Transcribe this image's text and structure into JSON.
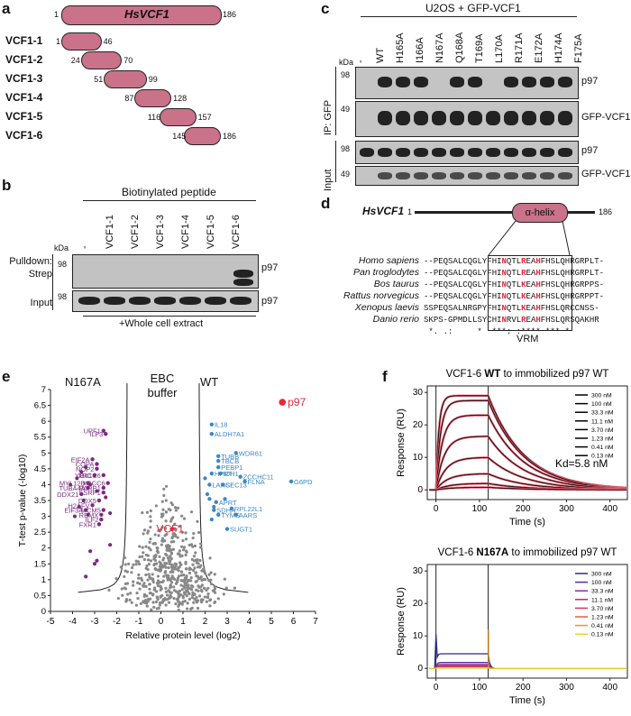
{
  "panel_a": {
    "label": "a",
    "full": {
      "name": "HsVCF1",
      "start": "1",
      "end": "186"
    },
    "fragments": [
      {
        "name": "VCF1-1",
        "start": "1",
        "end": "46"
      },
      {
        "name": "VCF1-2",
        "start": "24",
        "end": "70"
      },
      {
        "name": "VCF1-3",
        "start": "51",
        "end": "99"
      },
      {
        "name": "VCF1-4",
        "start": "87",
        "end": "128"
      },
      {
        "name": "VCF1-5",
        "start": "116",
        "end": "157"
      },
      {
        "name": "VCF1-6",
        "start": "145",
        "end": "186"
      }
    ]
  },
  "panel_b": {
    "label": "b",
    "header": "Biotinylated peptide",
    "lanes": [
      "-",
      "VCF1-1",
      "VCF1-2",
      "VCF1-3",
      "VCF1-4",
      "VCF1-5",
      "VCF1-6"
    ],
    "kda": "kDa",
    "marker": "98",
    "row1_label": "Pulldown: Strep",
    "row2_label": "Input",
    "band_label": "p97",
    "footer": "+Whole cell extract"
  },
  "panel_c": {
    "label": "c",
    "header": "U2OS + GFP-VCF1",
    "lanes": [
      "-",
      "WT",
      "H165A",
      "I166A",
      "N167A",
      "Q168A",
      "T169A",
      "L170A",
      "R171A",
      "E172A",
      "H174A",
      "F175A"
    ],
    "kda": "kDa",
    "ip_label": "IP: GFP",
    "input_label": "Input",
    "rows": [
      {
        "marker": "98",
        "band": "p97"
      },
      {
        "marker": "49",
        "band": "GFP-VCF1"
      },
      {
        "marker": "98",
        "band": "p97"
      },
      {
        "marker": "49",
        "band": "GFP-VCF1"
      }
    ]
  },
  "panel_d": {
    "label": "d",
    "protein": "HsVCF1",
    "start": "1",
    "end": "186",
    "domain": "α-helix",
    "species": [
      "Homo sapiens",
      "Pan troglodytes",
      "Bos taurus",
      "Rattus norvegicus",
      "Xenopus laevis",
      "Danio rerio"
    ],
    "sequences": [
      "--PEQSALCQGLYFHINQTLREAHFHSLQHRGRPLT-",
      "--PEQSALCQGLYFHINQTLREAHFHSLQHRGRPLT-",
      "--PEQSALCQGLYFHINQTLKEAHFHSLQHRGRPPS-",
      "--PEQSALCQGLYFHINQTLKEAHFHSLQHRGRPPT-",
      "SSPEQSALNRGPYFHINQTLKEAHFHSLQRCCNSS-",
      "SKPS-GPMDLLSYCHINRVLREAHFHSLQRSQAKHR"
    ],
    "consensus": " *. .:     *  ***: :**** *** *      ",
    "motif": "VRM"
  },
  "panel_e": {
    "label": "e",
    "left_label": "N167A",
    "mid_label": "EBC\nbuffer",
    "right_label": "WT",
    "xlabel": "Relative protein level (log2)",
    "ylabel": "T-test p-value (-log10)"
  },
  "chart_data": [
    {
      "type": "scatter",
      "title": "",
      "xlabel": "Relative protein level (log2)",
      "ylabel": "T-test p-value (-log10)",
      "xlim": [
        -5,
        7
      ],
      "ylim": [
        0,
        7
      ],
      "xticks": [
        "-5",
        "-4",
        "-3",
        "-2",
        "-1",
        "0",
        "1",
        "2",
        "3",
        "4",
        "5",
        "6",
        "7"
      ],
      "yticks": [
        "0",
        "0.5",
        "1",
        "1.5",
        "2",
        "2.5",
        "3",
        "3.5",
        "4",
        "4.5",
        "5",
        "5.5",
        "6",
        "6.5",
        "7"
      ],
      "highlighted": [
        {
          "name": "p97",
          "x": 5.5,
          "y": 6.6,
          "color": "#e8283a"
        },
        {
          "name": "VCF1",
          "x": 0.5,
          "y": 2.6,
          "color": "#e8283a"
        }
      ],
      "wt_enriched": [
        {
          "name": "IL18",
          "x": 2.3,
          "y": 5.9
        },
        {
          "name": "ALDH7A1",
          "x": 2.3,
          "y": 5.6
        },
        {
          "name": "WDR61",
          "x": 3.4,
          "y": 5.0
        },
        {
          "name": "TUBB",
          "x": 2.6,
          "y": 4.9
        },
        {
          "name": "TBCB",
          "x": 2.6,
          "y": 4.75
        },
        {
          "name": "PEBP1",
          "x": 2.6,
          "y": 4.55
        },
        {
          "name": "HPRT",
          "x": 2.3,
          "y": 4.35
        },
        {
          "name": "IDH1",
          "x": 2.7,
          "y": 4.35
        },
        {
          "name": "ZCCHC11",
          "x": 3.6,
          "y": 4.25
        },
        {
          "name": "FLNA",
          "x": 3.8,
          "y": 4.1
        },
        {
          "name": "G6PD",
          "x": 5.9,
          "y": 4.1
        },
        {
          "name": "LANCL",
          "x": 2.2,
          "y": 4.0
        },
        {
          "name": "SEC13",
          "x": 2.8,
          "y": 4.0
        },
        {
          "name": "APRT",
          "x": 2.5,
          "y": 3.45
        },
        {
          "name": "RPL22L1",
          "x": 3.2,
          "y": 3.25
        },
        {
          "name": "SDHA",
          "x": 2.4,
          "y": 3.2
        },
        {
          "name": "AARS",
          "x": 3.4,
          "y": 3.05
        },
        {
          "name": "TYMS",
          "x": 2.6,
          "y": 3.05
        },
        {
          "name": "SUGT1",
          "x": 3.0,
          "y": 2.6
        }
      ],
      "n167a_enriched": [
        {
          "name": "UPF1",
          "x": -2.6,
          "y": 5.7
        },
        {
          "name": "ILF3",
          "x": -2.5,
          "y": 5.6
        },
        {
          "name": "EIF2A",
          "x": -3.1,
          "y": 4.8
        },
        {
          "name": "COPA",
          "x": -2.9,
          "y": 4.65
        },
        {
          "name": "NOP2",
          "x": -2.9,
          "y": 4.5
        },
        {
          "name": "XRCC6",
          "x": -2.6,
          "y": 4.3
        },
        {
          "name": "YBX1",
          "x": -3.0,
          "y": 4.3
        },
        {
          "name": "MYL12B",
          "x": -3.3,
          "y": 4.05
        },
        {
          "name": "XRCC6",
          "x": -2.4,
          "y": 4.05
        },
        {
          "name": "TUBA4A",
          "x": -3.3,
          "y": 3.9
        },
        {
          "name": "PARP1",
          "x": -2.6,
          "y": 3.9
        },
        {
          "name": "SSRP1",
          "x": -2.6,
          "y": 3.75
        },
        {
          "name": "DDX21",
          "x": -3.6,
          "y": 3.7
        },
        {
          "name": "DDX5",
          "x": -2.8,
          "y": 3.5
        },
        {
          "name": "H2AFV",
          "x": -3.1,
          "y": 3.35
        },
        {
          "name": "EIF3A",
          "x": -3.4,
          "y": 3.2
        },
        {
          "name": "MCM5",
          "x": -2.6,
          "y": 3.2
        },
        {
          "name": "RBMX",
          "x": -2.7,
          "y": 3.05
        },
        {
          "name": "ILF2",
          "x": -2.7,
          "y": 2.9
        },
        {
          "name": "FXR1",
          "x": -2.8,
          "y": 2.75
        }
      ],
      "series_colors": {
        "wt": "#3b86c6",
        "n167a": "#7a2a7e",
        "background": "#888888"
      }
    },
    {
      "type": "line",
      "title": "VCF1-6 WT to immobilized p97 WT",
      "title_parts": {
        "prefix": "VCF1-6 ",
        "bold": "WT",
        "suffix": " to immobilized p97 WT"
      },
      "xlabel": "Time (s)",
      "ylabel": "Response (RU)",
      "xlim": [
        -20,
        440
      ],
      "ylim": [
        -3,
        32
      ],
      "xticks": [
        "0",
        "100",
        "200",
        "300",
        "400"
      ],
      "yticks": [
        "0",
        "10",
        "20",
        "30"
      ],
      "injection_end_s": 120,
      "annotation": "Kd=5.8 nM",
      "legend": [
        "300 nM",
        "100 nM",
        "33.3 nM",
        "11.1 nM",
        "3.70 nM",
        "1.23 nM",
        "0.41 nM",
        "0.13 nM"
      ],
      "plateaus_RU": [
        29,
        27.5,
        23,
        16.5,
        10,
        5,
        2,
        0.8
      ],
      "fit_color": "#000000",
      "data_color": "#e06070"
    },
    {
      "type": "line",
      "title": "VCF1-6 N167A to immobilized p97 WT",
      "title_parts": {
        "prefix": "VCF1-6 ",
        "bold": "N167A",
        "suffix": " to immobilized p97 WT"
      },
      "xlabel": "Time (s)",
      "ylabel": "Response (RU)",
      "xlim": [
        -20,
        440
      ],
      "ylim": [
        -3,
        32
      ],
      "xticks": [
        "0",
        "100",
        "200",
        "300",
        "400"
      ],
      "yticks": [
        "0",
        "10",
        "20",
        "30"
      ],
      "legend": [
        "300 nM",
        "100 nM",
        "33.3 nM",
        "11.1 nM",
        "3.70 nM",
        "1.23 nM",
        "0.41 nM",
        "0.13 nM"
      ],
      "legend_colors": [
        "#2b2b8a",
        "#5a2a9a",
        "#8a2a9a",
        "#b02a80",
        "#d03a5a",
        "#e0603a",
        "#f0902a",
        "#f0d02a"
      ],
      "plateaus_RU": [
        4.5,
        1.8,
        1.2,
        0.8,
        0.5,
        0.3,
        0.2,
        0.1
      ]
    }
  ],
  "panel_f": {
    "label": "f"
  }
}
